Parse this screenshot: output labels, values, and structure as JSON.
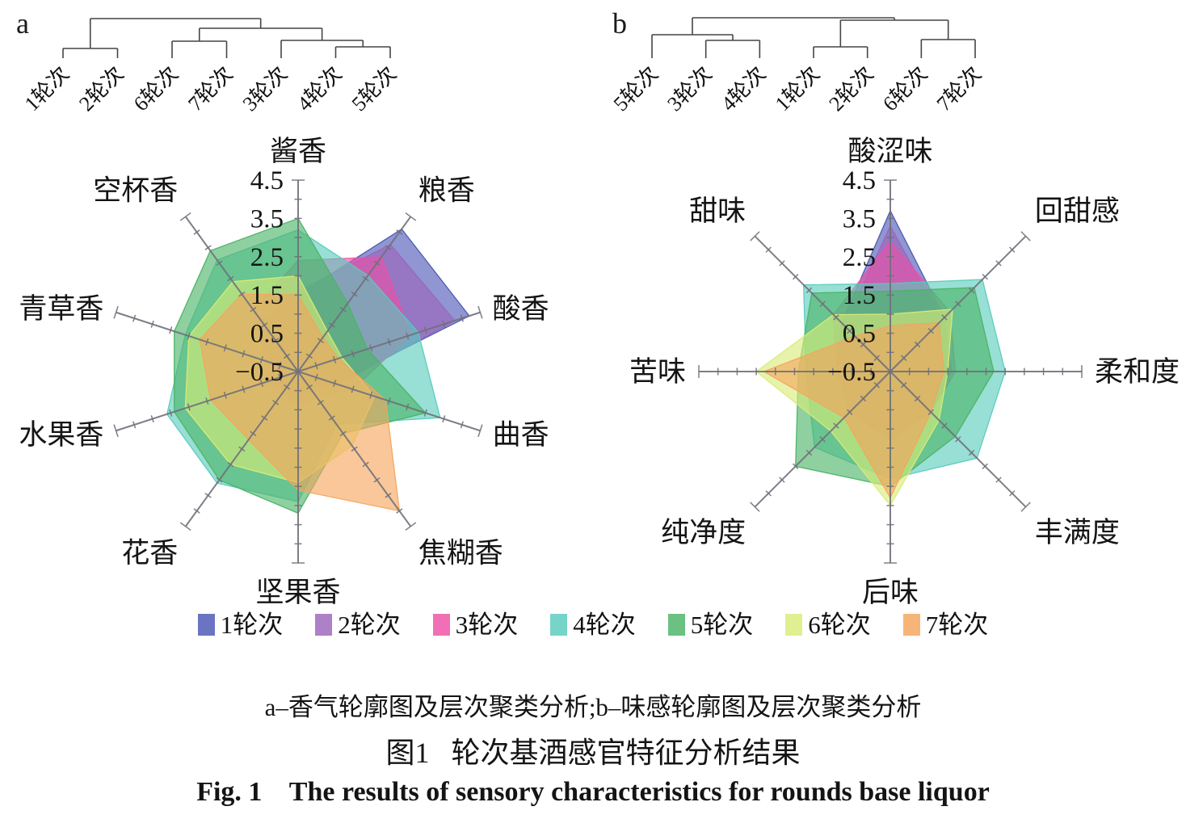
{
  "figure": {
    "panel_a_letter": "a",
    "panel_b_letter": "b",
    "caption_line1": "a–香气轮廓图及层次聚类分析;b–味感轮廓图及层次聚类分析",
    "caption_line2": "图1   轮次基酒感官特征分析结果",
    "caption_line3": "Fig. 1    The results of sensory characteristics for rounds base liquor"
  },
  "legend": {
    "items": [
      {
        "label": "1轮次",
        "color": "#4a55b4"
      },
      {
        "label": "2轮次",
        "color": "#9c64bb"
      },
      {
        "label": "3轮次",
        "color": "#ee4fa4"
      },
      {
        "label": "4轮次",
        "color": "#58cbbc"
      },
      {
        "label": "5轮次",
        "color": "#4ab365"
      },
      {
        "label": "6轮次",
        "color": "#d9ec77"
      },
      {
        "label": "7轮次",
        "color": "#f5a45c"
      }
    ]
  },
  "chart_data": [
    {
      "type": "radar",
      "panel": "a",
      "description": "aroma profile radar with hierarchical clustering dendrogram",
      "axes": [
        "酱香",
        "粮香",
        "酸香",
        "曲香",
        "焦糊香",
        "坚果香",
        "花香",
        "水果香",
        "青草香",
        "空杯香"
      ],
      "scale": {
        "min": -0.5,
        "max": 4.5,
        "tick_step": 0.5,
        "label_step": 1.0
      },
      "tick_labels": [
        "4.5",
        "3.5",
        "2.5",
        "1.5",
        "0.5",
        "−0.5"
      ],
      "series": [
        {
          "name": "1轮次",
          "color": "#4a55b4",
          "values": [
            1.5,
            4.1,
            4.2,
            0.5,
            0.1,
            0.3,
            0.1,
            0.4,
            0.3,
            1.0
          ]
        },
        {
          "name": "2轮次",
          "color": "#9c64bb",
          "values": [
            1.6,
            3.6,
            3.8,
            0.6,
            0.1,
            0.3,
            0.1,
            0.4,
            0.3,
            1.1
          ]
        },
        {
          "name": "3轮次",
          "color": "#ee4fa4",
          "values": [
            2.4,
            3.2,
            2.6,
            1.0,
            0.3,
            0.4,
            0.2,
            0.6,
            0.4,
            1.5
          ]
        },
        {
          "name": "4轮次",
          "color": "#58cbbc",
          "values": [
            3.2,
            2.6,
            2.8,
            3.4,
            1.2,
            2.9,
            3.1,
            3.1,
            2.6,
            3.1
          ]
        },
        {
          "name": "5轮次",
          "color": "#4ab365",
          "values": [
            3.5,
            1.7,
            1.4,
            3.0,
            1.5,
            3.2,
            3.0,
            2.9,
            2.9,
            3.4
          ]
        },
        {
          "name": "6轮次",
          "color": "#d9ec77",
          "values": [
            2.0,
            0.8,
            0.7,
            1.6,
            1.9,
            2.4,
            2.5,
            2.6,
            2.5,
            2.4
          ]
        },
        {
          "name": "7轮次",
          "color": "#f5a45c",
          "values": [
            1.5,
            0.6,
            0.6,
            1.9,
            4.0,
            2.6,
            1.7,
            1.9,
            2.2,
            2.0
          ]
        }
      ],
      "dendrogram": {
        "leaf_order": [
          "1轮次",
          "2轮次",
          "6轮次",
          "7轮次",
          "3轮次",
          "4轮次",
          "5轮次"
        ],
        "tree": {
          "h": 0.98,
          "c": [
            {
              "h": 0.24,
              "c": [
                {
                  "leaf": "1轮次"
                },
                {
                  "leaf": "2轮次"
                }
              ]
            },
            {
              "h": 0.74,
              "c": [
                {
                  "h": 0.42,
                  "c": [
                    {
                      "leaf": "6轮次"
                    },
                    {
                      "leaf": "7轮次"
                    }
                  ]
                },
                {
                  "h": 0.44,
                  "c": [
                    {
                      "leaf": "3轮次"
                    },
                    {
                      "h": 0.28,
                      "c": [
                        {
                          "leaf": "4轮次"
                        },
                        {
                          "leaf": "5轮次"
                        }
                      ]
                    }
                  ]
                }
              ]
            }
          ]
        }
      }
    },
    {
      "type": "radar",
      "panel": "b",
      "description": "taste profile radar with hierarchical clustering dendrogram",
      "axes": [
        "酸涩味",
        "回甜感",
        "柔和度",
        "丰满度",
        "后味",
        "纯净度",
        "苦味",
        "甜味"
      ],
      "scale": {
        "min": -0.5,
        "max": 4.5,
        "tick_step": 0.5,
        "label_step": 1.0
      },
      "tick_labels": [
        "4.5",
        "3.5",
        "2.5",
        "1.5",
        "0.5",
        "−0.5"
      ],
      "series": [
        {
          "name": "1轮次",
          "color": "#4a55b4",
          "values": [
            3.7,
            1.5,
            1.1,
            1.0,
            1.3,
            1.0,
            0.9,
            1.3
          ]
        },
        {
          "name": "2轮次",
          "color": "#9c64bb",
          "values": [
            3.3,
            1.4,
            1.0,
            0.9,
            1.2,
            0.9,
            0.8,
            1.2
          ]
        },
        {
          "name": "3轮次",
          "color": "#ee4fa4",
          "values": [
            2.9,
            1.7,
            1.2,
            1.0,
            1.3,
            1.0,
            0.9,
            1.6
          ]
        },
        {
          "name": "4轮次",
          "color": "#58cbbc",
          "values": [
            1.8,
            2.9,
            2.5,
            2.7,
            2.3,
            2.3,
            1.7,
            2.7
          ]
        },
        {
          "name": "5轮次",
          "color": "#4ab365",
          "values": [
            1.6,
            2.6,
            2.2,
            1.9,
            2.5,
            3.0,
            1.9,
            2.4
          ]
        },
        {
          "name": "6轮次",
          "color": "#d9ec77",
          "values": [
            1.0,
            1.8,
            1.0,
            1.3,
            3.0,
            1.7,
            3.0,
            1.6
          ]
        },
        {
          "name": "7轮次",
          "color": "#f5a45c",
          "values": [
            0.7,
            1.3,
            0.9,
            1.0,
            2.8,
            1.2,
            2.8,
            0.8
          ]
        }
      ],
      "dendrogram": {
        "leaf_order": [
          "5轮次",
          "3轮次",
          "4轮次",
          "1轮次",
          "2轮次",
          "6轮次",
          "7轮次"
        ],
        "tree": {
          "h": 1.0,
          "c": [
            {
              "h": 0.58,
              "c": [
                {
                  "leaf": "5轮次"
                },
                {
                  "h": 0.44,
                  "c": [
                    {
                      "leaf": "3轮次"
                    },
                    {
                      "leaf": "4轮次"
                    }
                  ]
                }
              ]
            },
            {
              "h": 0.94,
              "c": [
                {
                  "h": 0.28,
                  "c": [
                    {
                      "leaf": "1轮次"
                    },
                    {
                      "leaf": "2轮次"
                    }
                  ]
                },
                {
                  "h": 0.46,
                  "c": [
                    {
                      "leaf": "6轮次"
                    },
                    {
                      "leaf": "7轮次"
                    }
                  ]
                }
              ]
            }
          ]
        }
      }
    }
  ]
}
